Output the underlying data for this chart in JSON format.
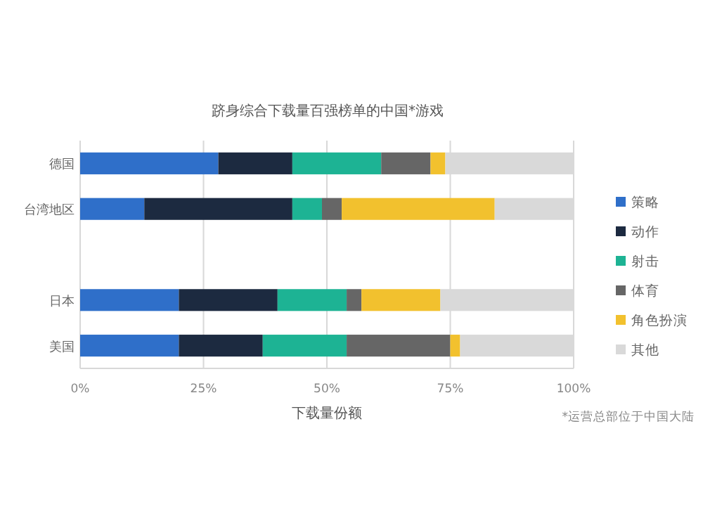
{
  "chart_data": {
    "type": "bar",
    "orientation": "horizontal",
    "stacked": true,
    "title": "跻身综合下载量百强榜单的中国*游戏",
    "xlabel": "下载量份额",
    "categories": [
      "德国",
      "台湾地区",
      null,
      "日本",
      "美国"
    ],
    "series": [
      {
        "name": "策略",
        "color": "#2f6fc9",
        "values": [
          28,
          13,
          null,
          20,
          20
        ]
      },
      {
        "name": "动作",
        "color": "#1c2a40",
        "values": [
          15,
          30,
          null,
          20,
          17
        ]
      },
      {
        "name": "射击",
        "color": "#1db394",
        "values": [
          18,
          6,
          null,
          14,
          17
        ]
      },
      {
        "name": "体育",
        "color": "#666666",
        "values": [
          10,
          4,
          null,
          3,
          21
        ]
      },
      {
        "name": "角色扮演",
        "color": "#f2c12e",
        "values": [
          3,
          31,
          null,
          16,
          2
        ]
      },
      {
        "name": "其他",
        "color": "#d9d9d9",
        "values": [
          26,
          16,
          null,
          27,
          23
        ]
      }
    ],
    "xlim": [
      0,
      100
    ],
    "xticks": [
      {
        "value": 0,
        "label": "0%"
      },
      {
        "value": 25,
        "label": "25%"
      },
      {
        "value": 50,
        "label": "50%"
      },
      {
        "value": 75,
        "label": "75%"
      },
      {
        "value": 100,
        "label": "100%"
      }
    ],
    "grid": "x",
    "legend": "right",
    "annotations": [
      "*运营总部位于中国大陆"
    ]
  }
}
